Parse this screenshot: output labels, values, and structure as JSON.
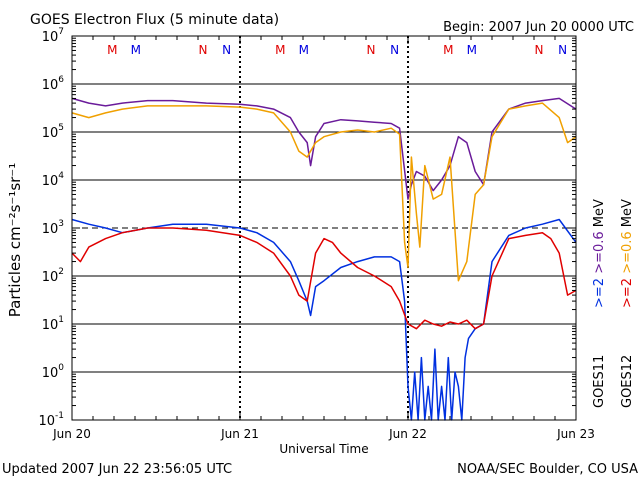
{
  "chart_data": {
    "type": "line",
    "title": "GOES Electron Flux (5 minute data)",
    "begin_label": "Begin: 2007 Jun 20 0000 UTC",
    "xlabel": "Universal Time",
    "ylabel": "Particles cm⁻²s⁻¹sr⁻¹",
    "x_ticks": [
      "Jun 20",
      "Jun 21",
      "Jun 22",
      "Jun 23"
    ],
    "y_scale": "log",
    "ylim": [
      0.1,
      10000000
    ],
    "y_ticks": [
      {
        "base": "10",
        "exp": "-1"
      },
      {
        "base": "10",
        "exp": "0"
      },
      {
        "base": "10",
        "exp": "1"
      },
      {
        "base": "10",
        "exp": "2"
      },
      {
        "base": "10",
        "exp": "3"
      },
      {
        "base": "10",
        "exp": "4"
      },
      {
        "base": "10",
        "exp": "5"
      },
      {
        "base": "10",
        "exp": "6"
      },
      {
        "base": "10",
        "exp": "7"
      }
    ],
    "threshold_line": 1000,
    "markers": [
      {
        "label": "M",
        "day": 0.24,
        "color": "#e00000"
      },
      {
        "label": "M",
        "day": 0.38,
        "color": "#0000e0"
      },
      {
        "label": "N",
        "day": 0.78,
        "color": "#e00000"
      },
      {
        "label": "N",
        "day": 0.92,
        "color": "#0000e0"
      },
      {
        "label": "M",
        "day": 1.24,
        "color": "#e00000"
      },
      {
        "label": "M",
        "day": 1.38,
        "color": "#0000e0"
      },
      {
        "label": "N",
        "day": 1.78,
        "color": "#e00000"
      },
      {
        "label": "N",
        "day": 1.92,
        "color": "#0000e0"
      },
      {
        "label": "M",
        "day": 2.24,
        "color": "#e00000"
      },
      {
        "label": "M",
        "day": 2.38,
        "color": "#0000e0"
      },
      {
        "label": "N",
        "day": 2.78,
        "color": "#e00000"
      },
      {
        "label": "N",
        "day": 2.92,
        "color": "#0000e0"
      }
    ],
    "series": [
      {
        "name": "GOES11 >=0.6 MeV",
        "color": "#6a1b9a",
        "x": [
          0,
          0.1,
          0.2,
          0.3,
          0.45,
          0.6,
          0.8,
          1.0,
          1.1,
          1.2,
          1.3,
          1.35,
          1.4,
          1.42,
          1.45,
          1.5,
          1.6,
          1.7,
          1.8,
          1.9,
          1.95,
          1.97,
          2.0,
          2.02,
          2.05,
          2.1,
          2.15,
          2.2,
          2.25,
          2.3,
          2.35,
          2.4,
          2.45,
          2.5,
          2.6,
          2.7,
          2.8,
          2.9,
          3.0
        ],
        "values": [
          500000,
          400000,
          350000,
          400000,
          450000,
          450000,
          400000,
          380000,
          350000,
          300000,
          200000,
          100000,
          60000,
          20000,
          80000,
          150000,
          180000,
          170000,
          160000,
          150000,
          120000,
          30000,
          4000,
          8000,
          15000,
          12000,
          6000,
          10000,
          20000,
          80000,
          60000,
          15000,
          8000,
          100000,
          300000,
          400000,
          450000,
          500000,
          300000
        ]
      },
      {
        "name": "GOES12 >=0.6 MeV",
        "color": "#f0a000",
        "x": [
          0,
          0.1,
          0.2,
          0.3,
          0.45,
          0.6,
          0.8,
          1.0,
          1.1,
          1.2,
          1.3,
          1.35,
          1.4,
          1.42,
          1.45,
          1.5,
          1.6,
          1.7,
          1.8,
          1.9,
          1.95,
          1.98,
          2.0,
          2.02,
          2.05,
          2.07,
          2.1,
          2.15,
          2.2,
          2.25,
          2.3,
          2.35,
          2.4,
          2.45,
          2.5,
          2.6,
          2.7,
          2.8,
          2.9,
          2.95,
          3.0
        ],
        "values": [
          250000,
          200000,
          250000,
          300000,
          350000,
          350000,
          350000,
          330000,
          300000,
          250000,
          100000,
          40000,
          30000,
          40000,
          60000,
          80000,
          100000,
          110000,
          100000,
          120000,
          90000,
          500,
          150,
          30000,
          2000,
          400,
          20000,
          4000,
          5000,
          30000,
          80,
          200,
          5000,
          8000,
          80000,
          300000,
          350000,
          400000,
          200000,
          60000,
          80000
        ]
      },
      {
        "name": "GOES11 >=2 MeV",
        "color": "#0030e0",
        "x": [
          0,
          0.1,
          0.2,
          0.3,
          0.45,
          0.6,
          0.8,
          1.0,
          1.1,
          1.2,
          1.3,
          1.35,
          1.4,
          1.42,
          1.45,
          1.5,
          1.6,
          1.7,
          1.8,
          1.9,
          1.95,
          1.98,
          2.0,
          2.02,
          2.04,
          2.06,
          2.08,
          2.1,
          2.12,
          2.14,
          2.16,
          2.18,
          2.2,
          2.22,
          2.24,
          2.26,
          2.28,
          2.3,
          2.32,
          2.34,
          2.36,
          2.4,
          2.45,
          2.5,
          2.6,
          2.7,
          2.8,
          2.9,
          3.0
        ],
        "values": [
          1500,
          1200,
          1000,
          800,
          1000,
          1200,
          1200,
          1000,
          800,
          500,
          200,
          80,
          30,
          15,
          60,
          80,
          150,
          200,
          250,
          250,
          200,
          30,
          0.5,
          0.1,
          1,
          0.1,
          2,
          0.1,
          0.5,
          0.1,
          3,
          0.1,
          0.5,
          0.1,
          2,
          0.1,
          1,
          0.5,
          0.1,
          2,
          5,
          8,
          10,
          200,
          700,
          1000,
          1200,
          1500,
          500
        ]
      },
      {
        "name": "GOES12 >=2 MeV",
        "color": "#e00000",
        "x": [
          0,
          0.05,
          0.1,
          0.2,
          0.3,
          0.45,
          0.6,
          0.8,
          1.0,
          1.1,
          1.2,
          1.3,
          1.35,
          1.4,
          1.45,
          1.5,
          1.55,
          1.6,
          1.7,
          1.8,
          1.9,
          1.95,
          2.0,
          2.05,
          2.1,
          2.15,
          2.2,
          2.25,
          2.3,
          2.35,
          2.4,
          2.45,
          2.5,
          2.6,
          2.7,
          2.8,
          2.85,
          2.9,
          2.95,
          3.0
        ],
        "values": [
          300,
          200,
          400,
          600,
          800,
          1000,
          1000,
          900,
          700,
          500,
          300,
          100,
          40,
          30,
          300,
          600,
          500,
          300,
          150,
          100,
          60,
          30,
          10,
          8,
          12,
          10,
          9,
          11,
          10,
          12,
          8,
          10,
          100,
          600,
          700,
          800,
          600,
          300,
          40,
          50
        ]
      }
    ]
  },
  "legend_labels": [
    {
      "text": ">=2",
      "color": "#0030e0"
    },
    {
      "text": ">=0.6",
      "color": "#6a1b9a"
    },
    {
      "text": "MeV",
      "color": "#000000"
    },
    {
      "text": ">=2",
      "color": "#e00000"
    },
    {
      "text": ">=0.6",
      "color": "#f0a000"
    },
    {
      "text": "MeV",
      "color": "#000000"
    }
  ],
  "satellite_labels": [
    "GOES11",
    "GOES12"
  ],
  "footer": {
    "updated": "Updated 2007 Jun 22 23:56:05 UTC",
    "credit": "NOAA/SEC Boulder, CO USA"
  }
}
